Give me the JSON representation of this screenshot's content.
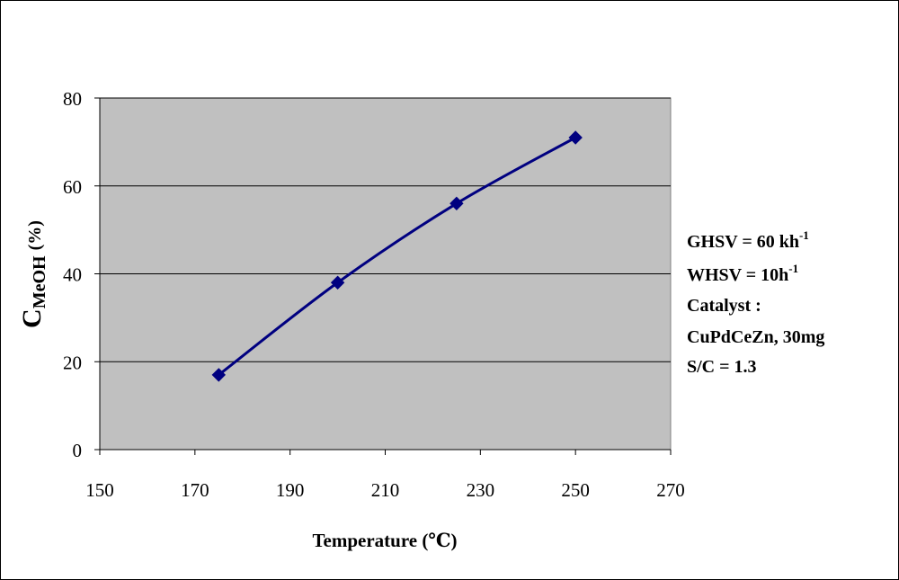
{
  "chart_data": {
    "type": "line",
    "x": [
      175,
      200,
      225,
      250
    ],
    "series": [
      {
        "values": [
          17,
          38,
          56,
          71
        ]
      }
    ],
    "xlabel": "Temperature (℃)",
    "ylabel_main": "C",
    "ylabel_sub": "MeOH",
    "ylabel_unit": "(%)",
    "xlim": [
      150,
      270
    ],
    "ylim": [
      0,
      80
    ],
    "xticks": [
      150,
      170,
      190,
      210,
      230,
      250,
      270
    ],
    "yticks": [
      0,
      20,
      40,
      60,
      80
    ],
    "grid": "horizontal",
    "plot_background": "#c0c0c0",
    "line_color": "#000080",
    "marker": "diamond",
    "annotations": {
      "ghsv": {
        "text": "GHSV = 60 kh",
        "sup": "-1"
      },
      "whsv": {
        "text": "WHSV = 10h",
        "sup": "-1"
      },
      "catalyst_label": "Catalyst :",
      "catalyst_value": "CuPdCeZn, 30mg",
      "sc": "S/C = 1.3"
    }
  }
}
